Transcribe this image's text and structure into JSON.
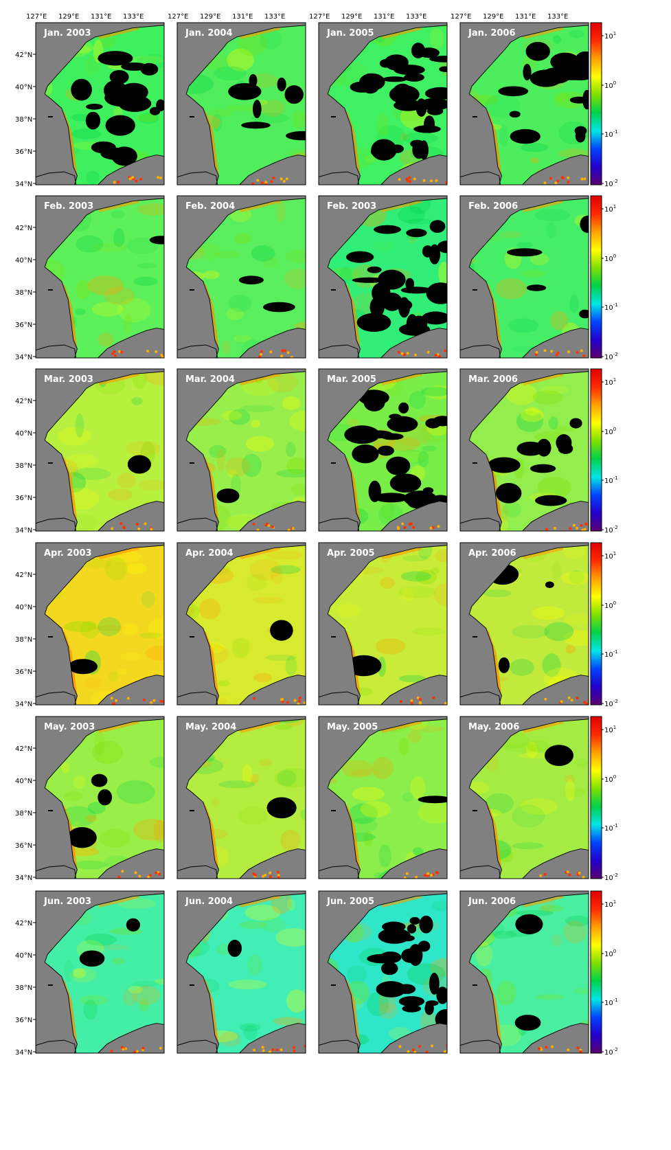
{
  "figure": {
    "lon_ticks": [
      "127°E",
      "129°E",
      "131°E",
      "133°E"
    ],
    "lat_ticks": [
      "42°N",
      "40°N",
      "38°N",
      "36°N",
      "34°N"
    ],
    "colorbar_ticks": [
      {
        "base": "10",
        "exp": "1"
      },
      {
        "base": "10",
        "exp": "0"
      },
      {
        "base": "10",
        "exp": "-1"
      },
      {
        "base": "10",
        "exp": "-2"
      }
    ],
    "colormap": [
      "#5a006e",
      "#2200cc",
      "#0044ff",
      "#00e6e6",
      "#00d24a",
      "#7fe000",
      "#ffff00",
      "#ffa000",
      "#ff2a00",
      "#e00000"
    ],
    "land_color": "#808080",
    "nodata_color": "#000000",
    "panels": [
      {
        "label": "Jan. 2003",
        "tone": "#3ef05e",
        "cloud": 0.3
      },
      {
        "label": "Jan. 2004",
        "tone": "#50ee5c",
        "cloud": 0.12
      },
      {
        "label": "Jan. 2005",
        "tone": "#3ef062",
        "cloud": 0.45
      },
      {
        "label": "Jan. 2006",
        "tone": "#4cee5e",
        "cloud": 0.25
      },
      {
        "label": "Feb. 2003",
        "tone": "#5ef05a",
        "cloud": 0.02
      },
      {
        "label": "Feb. 2004",
        "tone": "#5aee5e",
        "cloud": 0.04
      },
      {
        "label": "Feb. 2003",
        "tone": "#30ee78",
        "cloud": 0.4
      },
      {
        "label": "Feb. 2006",
        "tone": "#46ee68",
        "cloud": 0.06
      },
      {
        "label": "Mar. 2003",
        "tone": "#b8f040",
        "cloud": 0.02
      },
      {
        "label": "Mar. 2004",
        "tone": "#98ee4a",
        "cloud": 0.01
      },
      {
        "label": "Mar. 2005",
        "tone": "#7aee48",
        "cloud": 0.35
      },
      {
        "label": "Mar. 2006",
        "tone": "#92ee4c",
        "cloud": 0.15
      },
      {
        "label": "Apr. 2003",
        "tone": "#f4d820",
        "cloud": 0.02
      },
      {
        "label": "Apr. 2004",
        "tone": "#d8ea30",
        "cloud": 0.01
      },
      {
        "label": "Apr. 2005",
        "tone": "#c8ec38",
        "cloud": 0.01
      },
      {
        "label": "Apr. 2006",
        "tone": "#c2ea3c",
        "cloud": 0.05
      },
      {
        "label": "May. 2003",
        "tone": "#9aee48",
        "cloud": 0.05
      },
      {
        "label": "May. 2004",
        "tone": "#b4ec40",
        "cloud": 0.01
      },
      {
        "label": "May. 2005",
        "tone": "#8cee4a",
        "cloud": 0.02
      },
      {
        "label": "May. 2006",
        "tone": "#a4ec44",
        "cloud": 0.02
      },
      {
        "label": "Jun. 2003",
        "tone": "#44eea6",
        "cloud": 0.05
      },
      {
        "label": "Jun. 2004",
        "tone": "#40eeb6",
        "cloud": 0.01
      },
      {
        "label": "Jun. 2005",
        "tone": "#30e6c8",
        "cloud": 0.35
      },
      {
        "label": "Jun. 2006",
        "tone": "#4aeea0",
        "cloud": 0.03
      }
    ]
  }
}
